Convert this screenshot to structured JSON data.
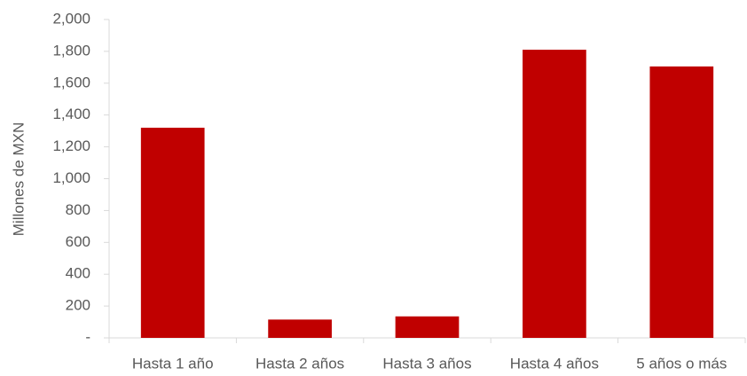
{
  "chart_data": {
    "type": "bar",
    "y_label": "Millones de MXN",
    "categories": [
      "Hasta 1 año",
      "Hasta  2 años",
      "Hasta 3 años",
      "Hasta 4 años",
      "5 años o más"
    ],
    "values": [
      1320,
      115,
      135,
      1810,
      1705
    ],
    "color": "#c00000",
    "ylim": [
      0,
      2000
    ],
    "yticks": [
      {
        "value": 0,
        "label": "-"
      },
      200,
      400,
      600,
      800,
      {
        "value": 1000,
        "label": "1,000"
      },
      {
        "value": 1200,
        "label": "1,200"
      },
      {
        "value": 1400,
        "label": "1,400"
      },
      {
        "value": 1600,
        "label": "1,600"
      },
      {
        "value": 1800,
        "label": "1,800"
      },
      {
        "value": 2000,
        "label": "2,000"
      }
    ],
    "grid": false
  }
}
